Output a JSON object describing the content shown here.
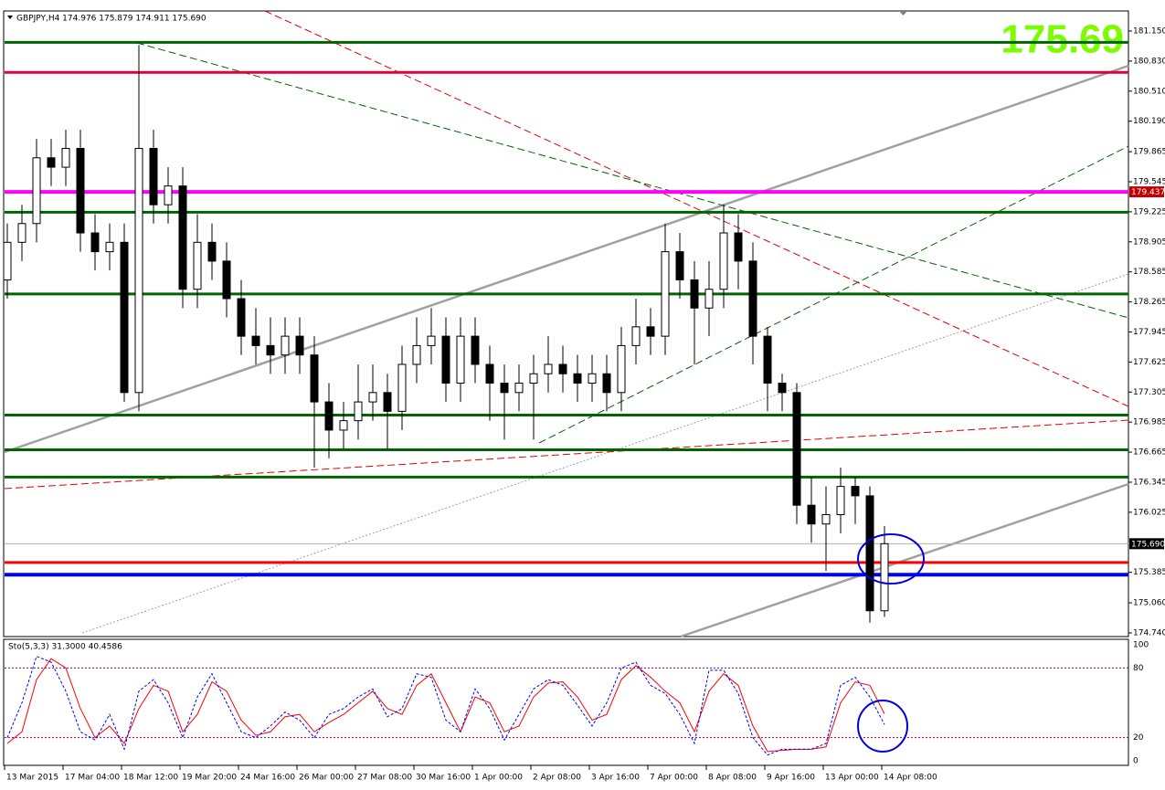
{
  "chart_data": [
    {
      "type": "candlestick",
      "title": "GBPJPY,H4 174.976 175.879 174.911 175.690",
      "price_label": "175.69",
      "categories": [
        "13 Mar 2015",
        null,
        null,
        null,
        "17 Mar 04:00",
        null,
        null,
        null,
        "18 Mar 12:00",
        null,
        null,
        null,
        "19 Mar 20:00",
        null,
        null,
        null,
        "24 Mar 16:00",
        null,
        null,
        null,
        "26 Mar 00:00",
        null,
        null,
        null,
        "27 Mar 08:00",
        null,
        null,
        null,
        "30 Mar 16:00",
        null,
        null,
        null,
        "1 Apr 00:00",
        null,
        null,
        null,
        "2 Apr 08:00",
        null,
        null,
        null,
        "3 Apr 16:00",
        null,
        null,
        null,
        "7 Apr 00:00",
        null,
        null,
        null,
        "8 Apr 08:00",
        null,
        null,
        null,
        "9 Apr 16:00",
        null,
        null,
        null,
        "13 Apr 00:00",
        null,
        null,
        null,
        "14 Apr 08:00"
      ],
      "open": [
        178.5,
        178.9,
        179.1,
        179.8,
        179.7,
        179.9,
        179.0,
        178.8,
        178.9,
        177.3,
        179.9,
        179.3,
        179.5,
        178.4,
        178.9,
        178.7,
        178.3,
        177.9,
        177.8,
        177.7,
        177.9,
        177.7,
        177.2,
        176.9,
        177.0,
        177.2,
        177.3,
        177.1,
        177.6,
        177.8,
        177.9,
        177.4,
        177.9,
        177.6,
        177.4,
        177.3,
        177.4,
        177.5,
        177.6,
        177.5,
        177.4,
        177.5,
        177.3,
        177.8,
        178.0,
        177.9,
        178.8,
        178.5,
        178.2,
        178.4,
        179.0,
        178.7,
        177.9,
        177.4,
        177.3,
        176.1,
        175.9,
        176.0,
        176.3,
        176.2,
        174.976
      ],
      "high": [
        179.1,
        179.3,
        180.0,
        180.0,
        180.1,
        180.1,
        179.2,
        179.1,
        179.1,
        181.0,
        180.1,
        179.7,
        179.7,
        179.2,
        179.1,
        178.9,
        178.5,
        178.2,
        178.1,
        178.1,
        178.1,
        177.9,
        177.4,
        177.2,
        177.6,
        177.6,
        177.5,
        177.8,
        178.1,
        178.2,
        178.1,
        178.1,
        178.1,
        177.8,
        177.6,
        177.6,
        177.7,
        177.9,
        177.8,
        177.7,
        177.7,
        177.7,
        178.0,
        178.3,
        178.2,
        179.1,
        179.0,
        178.7,
        178.7,
        179.3,
        179.2,
        178.9,
        178.0,
        177.5,
        177.4,
        176.4,
        176.3,
        176.5,
        176.4,
        176.3,
        175.879
      ],
      "low": [
        178.3,
        178.7,
        178.9,
        179.5,
        179.5,
        178.8,
        178.6,
        178.6,
        177.2,
        177.1,
        179.1,
        179.1,
        178.2,
        178.2,
        178.5,
        178.1,
        177.7,
        177.6,
        177.5,
        177.5,
        177.5,
        176.5,
        176.6,
        176.7,
        176.8,
        177.0,
        176.7,
        176.9,
        177.4,
        177.6,
        177.2,
        177.2,
        177.4,
        177.0,
        176.8,
        177.1,
        176.8,
        177.3,
        177.3,
        177.2,
        177.2,
        177.1,
        177.1,
        177.6,
        177.7,
        177.7,
        178.3,
        177.6,
        177.9,
        178.2,
        178.4,
        177.6,
        177.1,
        177.1,
        175.9,
        175.7,
        175.4,
        175.8,
        175.9,
        174.85,
        174.911
      ],
      "close": [
        178.9,
        179.1,
        179.8,
        179.7,
        179.9,
        179.0,
        178.8,
        178.9,
        177.3,
        179.9,
        179.3,
        179.5,
        178.4,
        178.9,
        178.7,
        178.3,
        177.9,
        177.8,
        177.7,
        177.9,
        177.7,
        177.2,
        176.9,
        177.0,
        177.2,
        177.3,
        177.1,
        177.6,
        177.8,
        177.9,
        177.4,
        177.9,
        177.6,
        177.4,
        177.3,
        177.4,
        177.5,
        177.6,
        177.5,
        177.4,
        177.5,
        177.3,
        177.8,
        178.0,
        177.9,
        178.8,
        178.5,
        178.2,
        178.4,
        179.0,
        178.7,
        177.9,
        177.4,
        177.3,
        176.1,
        175.9,
        176.0,
        176.3,
        176.2,
        174.976,
        175.69
      ],
      "ylim": [
        174.701,
        181.364
      ],
      "yticks": [
        {
          "value": 181.15,
          "label": "181.150"
        },
        {
          "value": 180.83,
          "label": "180.830"
        },
        {
          "value": 180.51,
          "label": "180.510"
        },
        {
          "value": 180.19,
          "label": "180.190"
        },
        179.865,
        179.545,
        179.225,
        178.905,
        178.585,
        178.265,
        177.945,
        177.625,
        177.305,
        176.985,
        176.665,
        176.345,
        176.025,
        175.385,
        {
          "value": 175.06,
          "label": "175.060"
        },
        {
          "value": 174.74,
          "label": "174.740"
        }
      ],
      "levels": [
        {
          "value": 181.03,
          "color": "#006400"
        },
        {
          "value": 180.71,
          "color": "#e0003c"
        },
        {
          "value": 179.437,
          "color": "#ff00ff",
          "tag_color": "#c00000"
        },
        {
          "value": 179.22,
          "color": "#006400"
        },
        {
          "value": 178.35,
          "color": "#006400"
        },
        {
          "value": 177.06,
          "color": "#006400"
        },
        {
          "value": 176.69,
          "color": "#006400"
        },
        {
          "value": 176.4,
          "color": "#006400"
        },
        {
          "value": 175.69,
          "value_label": "175.690",
          "color": "#b0b0b0",
          "tag_color": "#000000"
        },
        {
          "value": 175.49,
          "color": "#ff0000"
        },
        {
          "value": 175.36,
          "color": "#0000ff"
        }
      ]
    },
    {
      "type": "line",
      "title": "Sto(5,3,3) 31.3000 40.4586",
      "series": [
        {
          "color": "#ff0000",
          "dash": false,
          "values": [
            15,
            25,
            70,
            88,
            80,
            45,
            20,
            30,
            15,
            45,
            65,
            60,
            25,
            40,
            68,
            60,
            35,
            22,
            25,
            38,
            40,
            25,
            33,
            40,
            50,
            60,
            45,
            40,
            65,
            75,
            50,
            25,
            55,
            50,
            25,
            30,
            55,
            67,
            68,
            55,
            35,
            40,
            70,
            82,
            72,
            60,
            50,
            25,
            60,
            75,
            65,
            30,
            8,
            9,
            10,
            10,
            12,
            50,
            68,
            65,
            40.4586
          ]
        },
        {
          "color": "#0000ff",
          "dash": true,
          "values": [
            20,
            50,
            90,
            85,
            60,
            25,
            18,
            40,
            10,
            60,
            70,
            50,
            20,
            55,
            75,
            50,
            25,
            20,
            30,
            42,
            35,
            20,
            40,
            45,
            55,
            62,
            38,
            45,
            75,
            72,
            35,
            25,
            62,
            45,
            18,
            40,
            62,
            70,
            65,
            48,
            30,
            50,
            80,
            85,
            65,
            58,
            40,
            15,
            78,
            78,
            58,
            20,
            5,
            10,
            10,
            10,
            15,
            65,
            72,
            55,
            31.3
          ]
        }
      ],
      "ylim": [
        -3.9,
        104.7
      ],
      "yticks": [
        0,
        20,
        80,
        100
      ]
    }
  ]
}
